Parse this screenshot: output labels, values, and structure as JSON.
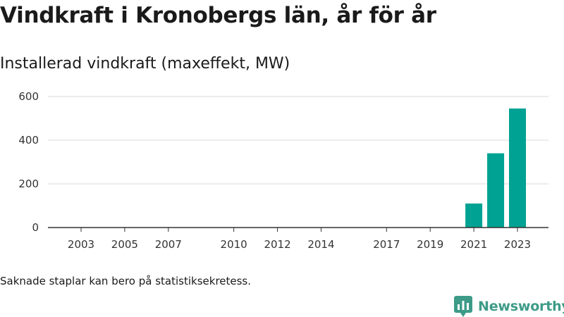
{
  "header": {
    "title": "Vindkraft i Kronobergs län, år för år",
    "subtitle": "Installerad vindkraft (maxeffekt, MW)"
  },
  "footnote": "Saknade staplar kan bero på statistiksekretess.",
  "brand": {
    "name": "Newsworthy",
    "icon": "bar-chart-icon",
    "color": "#3d9b88"
  },
  "colors": {
    "bar": "#00a293",
    "grid": "#d9d9d9",
    "axis": "#333333"
  },
  "chart_data": {
    "type": "bar",
    "categories": [
      "2003",
      "2004",
      "2005",
      "2006",
      "2007",
      "2008",
      "2009",
      "2010",
      "2011",
      "2012",
      "2013",
      "2014",
      "2015",
      "2016",
      "2017",
      "2018",
      "2019",
      "2020",
      "2021",
      "2022",
      "2023"
    ],
    "values": [
      null,
      null,
      null,
      null,
      null,
      null,
      null,
      null,
      null,
      null,
      null,
      null,
      null,
      null,
      null,
      null,
      null,
      null,
      110,
      340,
      545
    ],
    "x_tick_labels": [
      "2003",
      "2005",
      "2007",
      "2010",
      "2012",
      "2014",
      "2017",
      "2019",
      "2021",
      "2023"
    ],
    "y_ticks": [
      0,
      200,
      400,
      600
    ],
    "ylim": [
      0,
      600
    ],
    "grid": true,
    "legend": "none"
  }
}
